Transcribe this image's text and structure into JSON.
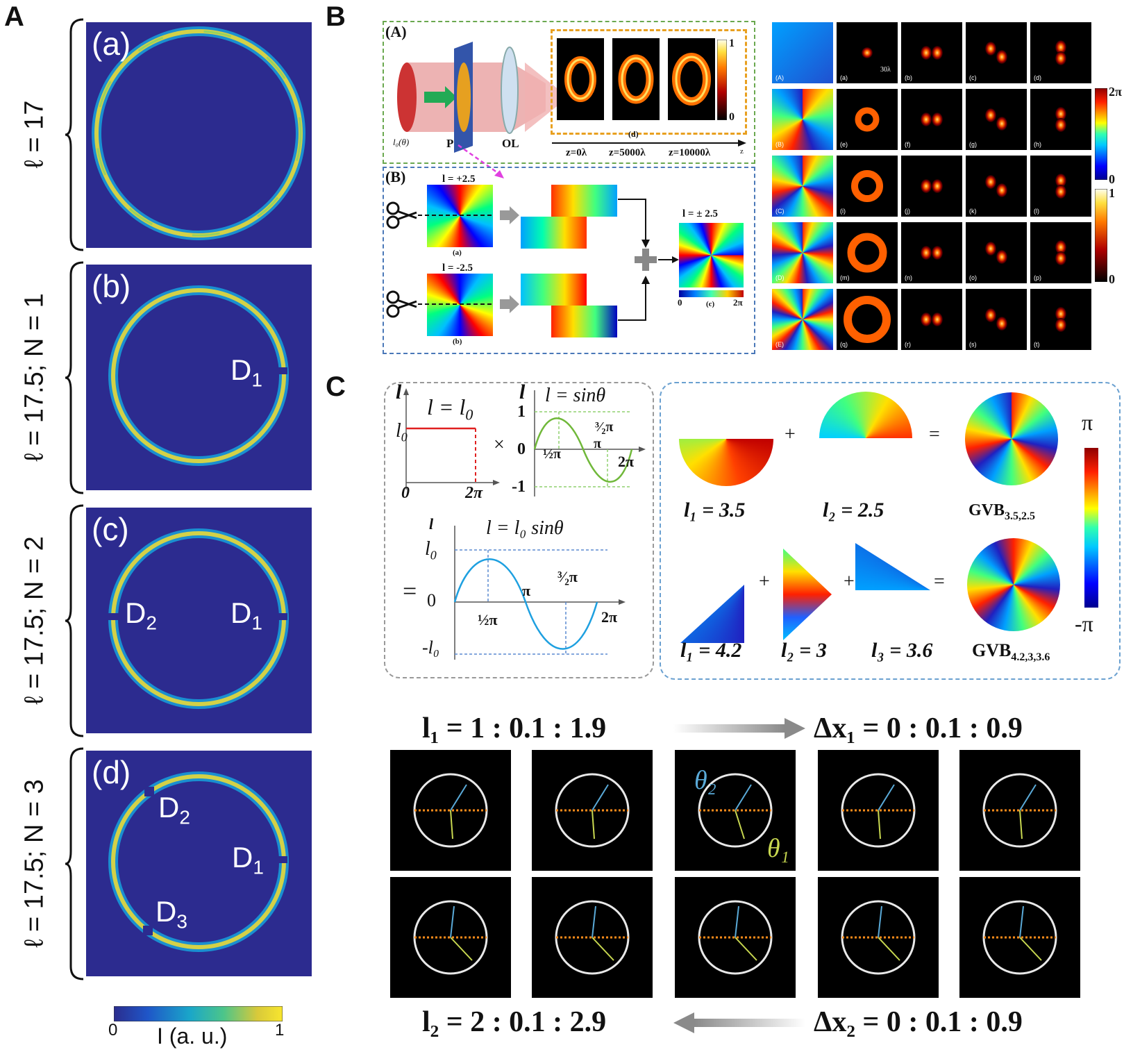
{
  "panels": {
    "A": "A",
    "B": "B",
    "C": "C"
  },
  "panelA": {
    "rows": [
      {
        "tag": "(a)",
        "vlabel": "ℓ = 17"
      },
      {
        "tag": "(b)",
        "vlabel": "ℓ = 17.5;  N = 1"
      },
      {
        "tag": "(c)",
        "vlabel": "ℓ = 17.5;  N = 2"
      },
      {
        "tag": "(d)",
        "vlabel": "ℓ = 17.5;  N = 3"
      }
    ],
    "defects": {
      "b_D1": "D",
      "b_D1_sub": "1",
      "c_D2": "D",
      "c_D2_sub": "2",
      "c_D1": "D",
      "c_D1_sub": "1",
      "d_D2": "D",
      "d_D2_sub": "2",
      "d_D1": "D",
      "d_D1_sub": "1",
      "d_D3": "D",
      "d_D3_sub": "3"
    },
    "colorbar": {
      "min": "0",
      "max": "1",
      "label": "I (a. u.)"
    }
  },
  "panelB": {
    "subA_tag": "(A)",
    "subB_tag": "(B)",
    "l0theta": "l₀(θ)",
    "P": "P",
    "OL": "OL",
    "d_tag": "(d)",
    "z_labels": [
      "z=0λ",
      "z=5000λ",
      "z=10000λ"
    ],
    "z_axis": "z",
    "inset_cb_max": "1",
    "inset_cb_min": "0",
    "l_plus": "l = +2.5",
    "l_minus": "l = -2.5",
    "l_pm": "l = ± 2.5",
    "a_tag": "(a)",
    "b_tag": "(b)",
    "c_tag": "(c)",
    "c_cb_min": "0",
    "c_cb_max": "2π",
    "grid_row_tags": [
      "(A)",
      "(B)",
      "(C)",
      "(D)",
      "(E)"
    ],
    "grid_cell_tags": [
      "(a)",
      "(b)",
      "(c)",
      "(d)",
      "(e)",
      "(f)",
      "(g)",
      "(h)",
      "(i)",
      "(j)",
      "(k)",
      "(l)",
      "(m)",
      "(n)",
      "(o)",
      "(p)",
      "(q)",
      "(r)",
      "(s)",
      "(t)"
    ],
    "scale_bar": "30λ",
    "phase_cb_max": "2π",
    "phase_cb_min": "0",
    "int_cb_max": "1",
    "int_cb_min": "0"
  },
  "panelC": {
    "l_axis": "l",
    "l_eq_l0": "l = l",
    "l0_sub": "0",
    "l0": "l",
    "zero": "0",
    "twopi": "2π",
    "times": "×",
    "sin_label": "l = sinθ",
    "one": "1",
    "minus_one": "-1",
    "half_pi": "½π",
    "pi": "π",
    "three_half_pi": "³⁄₂π",
    "equals": "=",
    "product_label": "l = l₀ sinθ",
    "minus_l0": "-l₀",
    "plus": "+",
    "eq1": {
      "l1": "l₁ = 3.5",
      "l2": "l₂ = 2.5",
      "gvb": "GVB",
      "gvb_sub": "3.5,2.5"
    },
    "eq2": {
      "l1": "l₁ = 4.2",
      "l2": "l₂ = 3",
      "l3": "l₃ = 3.6",
      "gvb": "GVB",
      "gvb_sub": "4.2,3,3.6"
    },
    "cb_max": "π",
    "cb_min": "-π",
    "seq_top_left": "l₁ = 1 : 0.1 : 1.9",
    "seq_top_right": "Δx₁ = 0 : 0.1 : 0.9",
    "seq_bottom_left": "l₂ = 2 : 0.1 : 2.9",
    "seq_bottom_right": "Δx₂ = 0 : 0.1 : 0.9",
    "theta2": "θ₂",
    "theta1": "θ₁"
  }
}
